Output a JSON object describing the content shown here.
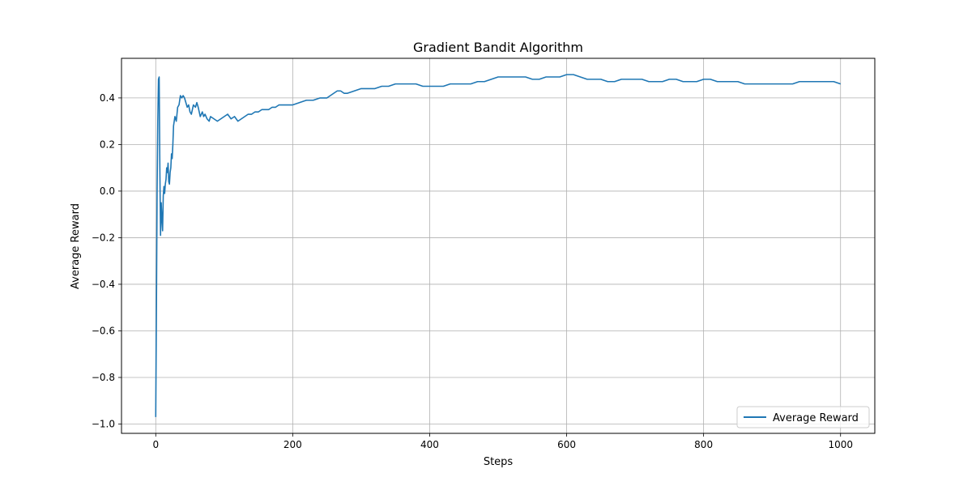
{
  "chart_data": {
    "type": "line",
    "title": "Gradient Bandit Algorithm",
    "xlabel": "Steps",
    "ylabel": "Average Reward",
    "xlim": [
      -50,
      1050
    ],
    "ylim": [
      -1.04,
      0.57
    ],
    "x_ticks": [
      0,
      200,
      400,
      600,
      800,
      1000
    ],
    "x_tick_labels": [
      "0",
      "200",
      "400",
      "600",
      "800",
      "1000"
    ],
    "y_ticks": [
      -1.0,
      -0.8,
      -0.6,
      -0.4,
      -0.2,
      0.0,
      0.2,
      0.4
    ],
    "y_tick_labels": [
      "−1.0",
      "−0.8",
      "−0.6",
      "−0.4",
      "−0.2",
      "0.0",
      "0.2",
      "0.4"
    ],
    "grid": true,
    "legend_position": "lower-right",
    "series_color": "#1f77b4",
    "series": [
      {
        "name": "Average Reward",
        "x": [
          0,
          1,
          2,
          3,
          4,
          5,
          6,
          7,
          8,
          9,
          10,
          11,
          12,
          13,
          14,
          15,
          16,
          17,
          18,
          19,
          20,
          21,
          22,
          23,
          24,
          25,
          26,
          28,
          30,
          32,
          34,
          36,
          38,
          40,
          42,
          44,
          46,
          48,
          50,
          52,
          55,
          58,
          60,
          62,
          65,
          68,
          70,
          72,
          75,
          78,
          80,
          85,
          90,
          95,
          100,
          105,
          110,
          115,
          120,
          125,
          130,
          135,
          140,
          145,
          150,
          155,
          160,
          165,
          170,
          175,
          180,
          185,
          190,
          195,
          200,
          210,
          220,
          230,
          240,
          250,
          255,
          260,
          265,
          270,
          275,
          280,
          290,
          300,
          310,
          320,
          330,
          340,
          350,
          360,
          370,
          380,
          390,
          400,
          410,
          420,
          430,
          440,
          450,
          460,
          470,
          480,
          490,
          500,
          510,
          520,
          530,
          540,
          550,
          560,
          570,
          580,
          590,
          600,
          610,
          620,
          630,
          640,
          650,
          660,
          670,
          680,
          690,
          700,
          710,
          720,
          730,
          740,
          750,
          760,
          770,
          780,
          790,
          800,
          810,
          820,
          830,
          840,
          850,
          860,
          870,
          880,
          890,
          900,
          910,
          920,
          930,
          940,
          950,
          960,
          970,
          980,
          990,
          1000
        ],
        "values": [
          -0.97,
          -0.5,
          0.0,
          0.3,
          0.48,
          0.49,
          0.1,
          -0.19,
          -0.05,
          -0.12,
          -0.17,
          -0.02,
          0.02,
          -0.01,
          0.03,
          0.05,
          0.1,
          0.08,
          0.12,
          0.04,
          0.03,
          0.08,
          0.1,
          0.16,
          0.14,
          0.2,
          0.28,
          0.32,
          0.3,
          0.36,
          0.37,
          0.41,
          0.4,
          0.41,
          0.4,
          0.38,
          0.36,
          0.37,
          0.34,
          0.33,
          0.37,
          0.36,
          0.38,
          0.36,
          0.32,
          0.34,
          0.32,
          0.33,
          0.31,
          0.3,
          0.32,
          0.31,
          0.3,
          0.31,
          0.32,
          0.33,
          0.31,
          0.32,
          0.3,
          0.31,
          0.32,
          0.33,
          0.33,
          0.34,
          0.34,
          0.35,
          0.35,
          0.35,
          0.36,
          0.36,
          0.37,
          0.37,
          0.37,
          0.37,
          0.37,
          0.38,
          0.39,
          0.39,
          0.4,
          0.4,
          0.41,
          0.42,
          0.43,
          0.43,
          0.42,
          0.42,
          0.43,
          0.44,
          0.44,
          0.44,
          0.45,
          0.45,
          0.46,
          0.46,
          0.46,
          0.46,
          0.45,
          0.45,
          0.45,
          0.45,
          0.46,
          0.46,
          0.46,
          0.46,
          0.47,
          0.47,
          0.48,
          0.49,
          0.49,
          0.49,
          0.49,
          0.49,
          0.48,
          0.48,
          0.49,
          0.49,
          0.49,
          0.5,
          0.5,
          0.49,
          0.48,
          0.48,
          0.48,
          0.47,
          0.47,
          0.48,
          0.48,
          0.48,
          0.48,
          0.47,
          0.47,
          0.47,
          0.48,
          0.48,
          0.47,
          0.47,
          0.47,
          0.48,
          0.48,
          0.47,
          0.47,
          0.47,
          0.47,
          0.46,
          0.46,
          0.46,
          0.46,
          0.46,
          0.46,
          0.46,
          0.46,
          0.47,
          0.47,
          0.47,
          0.47,
          0.47,
          0.47,
          0.46
        ]
      }
    ]
  }
}
